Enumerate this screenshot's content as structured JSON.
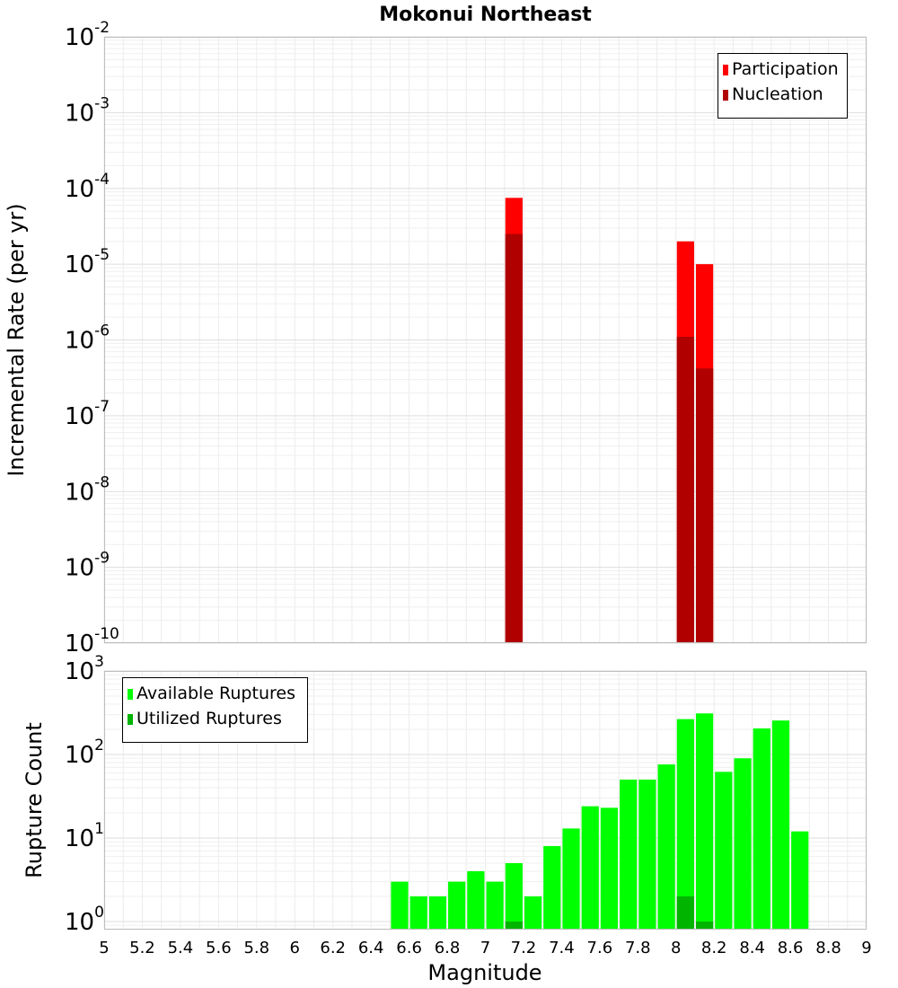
{
  "chart_data": [
    {
      "type": "bar",
      "title": "Mokonui Northeast",
      "xlabel": "",
      "ylabel": "Incremental Rate (per yr)",
      "y_scale": "log",
      "ylim": [
        1e-10,
        0.01
      ],
      "xlim": [
        5,
        9
      ],
      "bar_width": 0.1,
      "legend_position": "top-right",
      "series": [
        {
          "name": "Participation",
          "color": "#ff0000",
          "points": [
            {
              "x": 7.15,
              "y": 7.5e-05
            },
            {
              "x": 8.05,
              "y": 2e-05
            },
            {
              "x": 8.15,
              "y": 1e-05
            }
          ]
        },
        {
          "name": "Nucleation",
          "color": "#b00000",
          "points": [
            {
              "x": 7.15,
              "y": 2.5e-05
            },
            {
              "x": 8.05,
              "y": 1.1e-06
            },
            {
              "x": 8.15,
              "y": 4.2e-07
            }
          ]
        }
      ]
    },
    {
      "type": "bar",
      "title": "",
      "xlabel": "Magnitude",
      "ylabel": "Rupture Count",
      "y_scale": "log",
      "ylim": [
        0.8,
        1000
      ],
      "xlim": [
        5,
        9
      ],
      "bar_width": 0.1,
      "legend_position": "top-left",
      "series": [
        {
          "name": "Available Ruptures",
          "color": "#00ff00",
          "points": [
            {
              "x": 6.55,
              "y": 3
            },
            {
              "x": 6.65,
              "y": 2
            },
            {
              "x": 6.75,
              "y": 2
            },
            {
              "x": 6.85,
              "y": 3
            },
            {
              "x": 6.95,
              "y": 4
            },
            {
              "x": 7.05,
              "y": 3
            },
            {
              "x": 7.15,
              "y": 5
            },
            {
              "x": 7.25,
              "y": 2
            },
            {
              "x": 7.35,
              "y": 8
            },
            {
              "x": 7.45,
              "y": 13
            },
            {
              "x": 7.55,
              "y": 24
            },
            {
              "x": 7.65,
              "y": 23
            },
            {
              "x": 7.75,
              "y": 50
            },
            {
              "x": 7.85,
              "y": 50
            },
            {
              "x": 7.95,
              "y": 76
            },
            {
              "x": 8.05,
              "y": 265
            },
            {
              "x": 8.15,
              "y": 310
            },
            {
              "x": 8.25,
              "y": 62
            },
            {
              "x": 8.35,
              "y": 90
            },
            {
              "x": 8.45,
              "y": 205
            },
            {
              "x": 8.55,
              "y": 255
            },
            {
              "x": 8.65,
              "y": 12
            }
          ]
        },
        {
          "name": "Utilized Ruptures",
          "color": "#00b400",
          "points": [
            {
              "x": 7.15,
              "y": 1
            },
            {
              "x": 8.05,
              "y": 2
            },
            {
              "x": 8.15,
              "y": 1
            }
          ]
        }
      ],
      "x_ticks": [
        "5",
        "5.2",
        "5.4",
        "5.6",
        "5.8",
        "6",
        "6.2",
        "6.4",
        "6.6",
        "6.8",
        "7",
        "7.2",
        "7.4",
        "7.6",
        "7.8",
        "8",
        "8.2",
        "8.4",
        "8.6",
        "8.8",
        "9"
      ]
    }
  ]
}
